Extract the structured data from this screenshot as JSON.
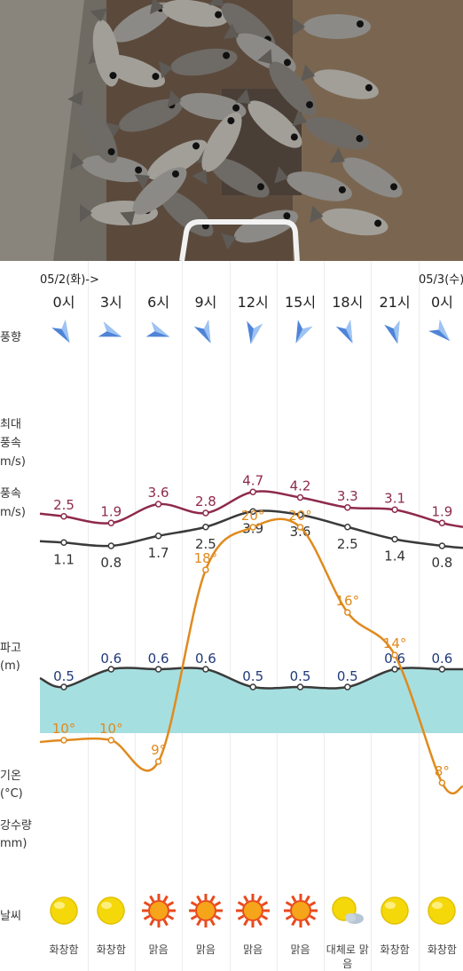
{
  "forecast": {
    "dates": [
      {
        "label": "05/2(화)->",
        "x": 45
      },
      {
        "label": "05/3(수)",
        "x": 472
      }
    ],
    "hours": [
      "0시",
      "3시",
      "6시",
      "9시",
      "12시",
      "15시",
      "18시",
      "21시",
      "0시"
    ],
    "row_labels": {
      "wind_dir": "풍향",
      "max_wind": [
        "최대",
        "풍속",
        "m/s)"
      ],
      "wind": [
        "풍속",
        "m/s)"
      ],
      "wave": [
        "파고",
        "(m)"
      ],
      "temp": [
        "기온",
        "(°C)"
      ],
      "precip": [
        "강수량",
        "mm)"
      ],
      "weather": "날씨"
    },
    "wind_direction_deg": [
      60,
      20,
      20,
      65,
      100,
      115,
      65,
      75,
      45
    ],
    "wind_direction_icons": [
      "arrow-icon",
      "arrow-icon",
      "arrow-icon",
      "arrow-icon",
      "arrow-icon",
      "arrow-icon",
      "arrow-icon",
      "arrow-icon",
      "arrow-icon"
    ],
    "max_wind": [
      "2.5",
      "1.9",
      "3.6",
      "2.8",
      "4.7",
      "4.2",
      "3.3",
      "3.1",
      "1.9"
    ],
    "wind": [
      "1.1",
      "0.8",
      "1.7",
      "2.5",
      "3.9",
      "3.6",
      "2.5",
      "1.4",
      "0.8"
    ],
    "wave": [
      "0.5",
      "0.6",
      "0.6",
      "0.6",
      "0.5",
      "0.5",
      "0.5",
      "0.6",
      "0.6"
    ],
    "temp": [
      "10°",
      "10°",
      "9°",
      "18°",
      "20°",
      "20°",
      "16°",
      "14°",
      "8°"
    ],
    "weather_icons": [
      "sun-icon",
      "sun-icon",
      "bright-sun-icon",
      "bright-sun-icon",
      "bright-sun-icon",
      "bright-sun-icon",
      "sun-cloud-icon",
      "sun-icon",
      "sun-icon"
    ],
    "weather": [
      "화창함",
      "화창함",
      "맑음",
      "맑음",
      "맑음",
      "맑음",
      "대체로 맑음",
      "화창함",
      "화창함"
    ]
  },
  "colors": {
    "max_wind_line": "#8e2a4a",
    "wind_line": "#3a3a3a",
    "wave_line": "#3a3a3a",
    "wave_fill": "#a6dfe0",
    "wave_label": "#203a7a",
    "temp_line": "#e08a1e",
    "temp_label": "#e08a1e",
    "wind_arrow": "#2f6fd0",
    "grid": "#ececec"
  }
}
